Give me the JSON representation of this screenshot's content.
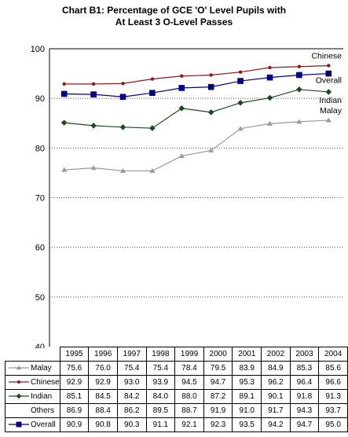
{
  "title": {
    "line1": "Chart B1: Percentage of GCE 'O' Level Pupils with",
    "line2": "At Least 3 O-Level Passes"
  },
  "chart_data": {
    "type": "line",
    "x": [
      "1995",
      "1996",
      "1997",
      "1998",
      "1999",
      "2000",
      "2001",
      "2002",
      "2003",
      "2004"
    ],
    "ylim": [
      40,
      100
    ],
    "yticks": [
      "40",
      "50",
      "60",
      "70",
      "80",
      "90",
      "100"
    ],
    "grid": true,
    "series": [
      {
        "name": "Malay",
        "values": [
          75.6,
          76.0,
          75.4,
          75.4,
          78.4,
          79.5,
          83.9,
          84.9,
          85.3,
          85.6
        ],
        "color": "#9b9b9b",
        "marker": "triangle",
        "plotted": true
      },
      {
        "name": "Chinese",
        "values": [
          92.9,
          92.9,
          93.0,
          93.9,
          94.5,
          94.7,
          95.3,
          96.2,
          96.4,
          96.6
        ],
        "color": "#8b1a1a",
        "marker": "circle",
        "plotted": true
      },
      {
        "name": "Indian",
        "values": [
          85.1,
          84.5,
          84.2,
          84.0,
          88.0,
          87.2,
          89.1,
          90.1,
          91.8,
          91.3
        ],
        "color": "#1e4a1e",
        "marker": "diamond",
        "plotted": true
      },
      {
        "name": "Others",
        "values": [
          86.9,
          88.4,
          86.2,
          89.5,
          88.7,
          91.9,
          91.0,
          91.7,
          94.3,
          93.7
        ],
        "color": "#000000",
        "marker": "none",
        "plotted": false
      },
      {
        "name": "Overall",
        "values": [
          90.9,
          90.8,
          90.3,
          91.1,
          92.1,
          92.3,
          93.5,
          94.2,
          94.7,
          95.0
        ],
        "color": "#000080",
        "marker": "square",
        "plotted": true
      }
    ],
    "annotations": [
      "Chinese",
      "Overall",
      "Indian",
      "Malay"
    ]
  }
}
